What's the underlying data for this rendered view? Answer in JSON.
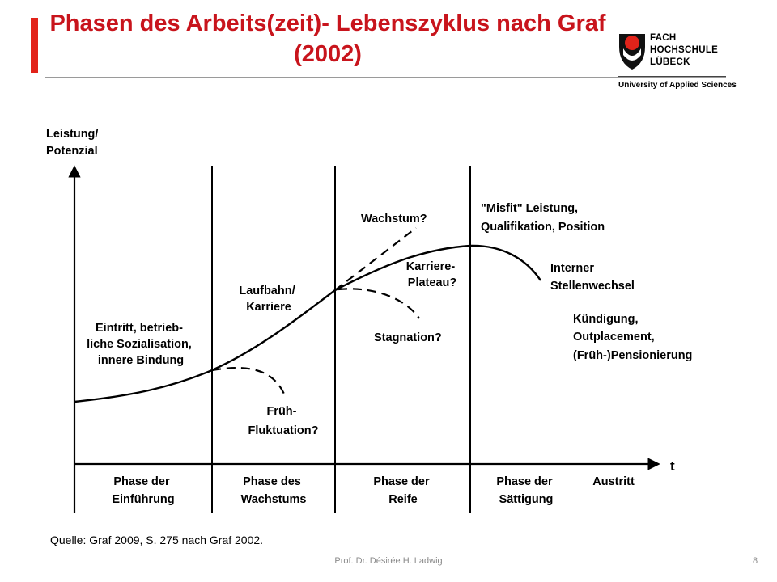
{
  "header": {
    "title": "Phasen des Arbeits(zeit)- Lebenszyklus nach Graf (2002)",
    "logo_lines": [
      "FACH",
      "HOCHSCHULE",
      "LÜBECK"
    ],
    "logo_subtitle": "University of Applied Sciences",
    "accent_color": "#c8141c"
  },
  "diagram": {
    "y_axis_label": [
      "Leistung/",
      "Potenzial"
    ],
    "x_axis_label": "t",
    "annotations": {
      "entry": [
        "Eintritt, betrieb-",
        "liche Sozialisation,",
        "innere Bindung"
      ],
      "career": [
        "Laufbahn/",
        "Karriere"
      ],
      "early_fluctuation": [
        "Früh-",
        "Fluktuation?"
      ],
      "growth": "Wachstum?",
      "plateau": [
        "Karriere-",
        "Plateau?"
      ],
      "stagnation": "Stagnation?",
      "misfit": [
        "\"Misfit\" Leistung,",
        "Qualifikation, Position"
      ],
      "internal_change": [
        "Interner",
        "Stellenwechsel"
      ],
      "exit_options": [
        "Kündigung,",
        "Outplacement,",
        "(Früh-)Pensionierung"
      ]
    },
    "phases": [
      [
        "Phase der",
        "Einführung"
      ],
      [
        "Phase des",
        "Wachstums"
      ],
      [
        "Phase der",
        "Reife"
      ],
      [
        "Phase der",
        "Sättigung"
      ],
      [
        "Austritt"
      ]
    ]
  },
  "source": "Quelle: Graf 2009, S. 275 nach Graf 2002.",
  "footer": {
    "author": "Prof. Dr. Désirée H. Ladwig",
    "page": "8"
  }
}
